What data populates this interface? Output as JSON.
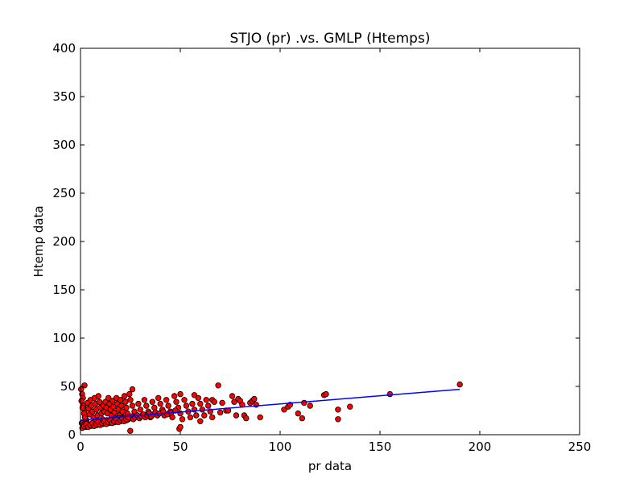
{
  "chart_data": {
    "type": "scatter",
    "title": "STJO (pr) .vs. GMLP (Htemps)",
    "xlabel": "pr data",
    "ylabel": "Htemp data",
    "xlim": [
      0,
      250
    ],
    "ylim": [
      0,
      400
    ],
    "xticks": [
      0,
      50,
      100,
      150,
      200,
      250
    ],
    "yticks": [
      0,
      50,
      100,
      150,
      200,
      250,
      300,
      350,
      400
    ],
    "grid": false,
    "legend": "none",
    "colors": {
      "points": "#ff0000",
      "point_edge": "#000000",
      "fit_line": "#0000ff"
    },
    "series": [
      {
        "kind": "points",
        "x": [
          0.3,
          0.8,
          1.2,
          1.5,
          2.0,
          2.5,
          3.0,
          0.5,
          1.0,
          1.8,
          2.2,
          3.5,
          4.0,
          4.5,
          5.0,
          5.5,
          6.0,
          6.5,
          7.0,
          7.5,
          8.0,
          8.5,
          9.0,
          9.5,
          10.0,
          10.5,
          11.0,
          11.5,
          12.0,
          12.5,
          13.0,
          13.5,
          14.0,
          14.5,
          15.0,
          15.5,
          16.0,
          16.5,
          17.0,
          17.5,
          18.0,
          18.5,
          19.0,
          19.5,
          20.0,
          20.5,
          21.0,
          21.5,
          22.0,
          22.5,
          23.0,
          23.5,
          24.0,
          24.5,
          25.0,
          26.0,
          27.0,
          28.0,
          29.0,
          30.0,
          31.0,
          32.0,
          33.0,
          34.0,
          35.0,
          36.0,
          37.0,
          38.0,
          39.0,
          40.0,
          41.0,
          42.0,
          43.0,
          44.0,
          45.0,
          46.0,
          47.0,
          48.0,
          49.0,
          50.0,
          51.0,
          52.0,
          53.0,
          54.0,
          55.0,
          56.0,
          57.0,
          58.0,
          59.0,
          60.0,
          61.0,
          62.0,
          63.0,
          64.0,
          65.0,
          66.0,
          0.6,
          1.4,
          2.8,
          3.2,
          4.2,
          5.2,
          6.2,
          7.2,
          8.2,
          9.2,
          10.2,
          11.2,
          12.2,
          13.2,
          14.2,
          15.2,
          16.2,
          17.2,
          18.2,
          19.2,
          20.2,
          21.2,
          22.2,
          23.2,
          24.2,
          25.5,
          26.5,
          27.5,
          28.5,
          29.5,
          30.5,
          31.5,
          32.5,
          33.5,
          34.5,
          35.5,
          36.5,
          37.5,
          38.5,
          39.5,
          41.5,
          43.5,
          45.5,
          47.5,
          49.5,
          0.9,
          1.9,
          2.9,
          3.9,
          4.9,
          5.9,
          6.9,
          7.9,
          8.9,
          9.9,
          10.9,
          11.9,
          12.9,
          13.9,
          14.9,
          15.9,
          16.9,
          17.9,
          18.9,
          19.9,
          20.9,
          21.9,
          22.9,
          23.9,
          24.9,
          2.0,
          26.0,
          50.0,
          50.0,
          57.0,
          60.0,
          66.0,
          67.0,
          69.0,
          70.0,
          71.0,
          73.0,
          74.0,
          76.0,
          77.0,
          78.0,
          79.0,
          80.0,
          81.0,
          82.0,
          83.0,
          85.0,
          86.0,
          87.0,
          88.0,
          90.0,
          102.0,
          104.0,
          105.0,
          109.0,
          111.0,
          112.0,
          115.0,
          122.0,
          123.0,
          129.0,
          129.0,
          135.0,
          155.0,
          190.0
        ],
        "y": [
          47,
          42,
          38,
          30,
          25,
          20,
          15,
          35,
          28,
          22,
          18,
          33,
          27,
          21,
          36,
          30,
          24,
          18,
          38,
          32,
          26,
          20,
          40,
          34,
          28,
          22,
          16,
          30,
          24,
          34,
          28,
          22,
          38,
          32,
          26,
          20,
          35,
          29,
          23,
          17,
          38,
          32,
          26,
          20,
          36,
          30,
          24,
          18,
          40,
          34,
          28,
          22,
          16,
          42,
          36,
          30,
          24,
          18,
          32,
          26,
          20,
          36,
          30,
          24,
          18,
          34,
          28,
          22,
          38,
          32,
          26,
          20,
          36,
          30,
          24,
          18,
          40,
          34,
          28,
          22,
          16,
          36,
          30,
          24,
          18,
          32,
          26,
          20,
          38,
          32,
          26,
          20,
          36,
          30,
          24,
          18,
          12,
          10,
          8,
          12,
          10,
          9,
          11,
          13,
          10,
          12,
          14,
          11,
          13,
          15,
          12,
          14,
          16,
          13,
          15,
          17,
          14,
          16,
          18,
          15,
          17,
          19,
          16,
          18,
          20,
          17,
          19,
          21,
          18,
          20,
          22,
          19,
          21,
          23,
          20,
          22,
          24,
          21,
          23,
          25,
          6,
          7,
          9,
          11,
          8,
          10,
          12,
          9,
          11,
          13,
          10,
          12,
          14,
          11,
          13,
          15,
          12,
          14,
          16,
          13,
          15,
          17,
          14,
          16,
          18,
          4,
          51,
          47,
          8,
          42,
          41,
          14,
          36,
          34,
          51,
          23,
          33,
          25,
          25,
          40,
          34,
          20,
          37,
          35,
          31,
          20,
          17,
          33,
          35,
          37,
          31,
          18,
          26,
          29,
          31,
          22,
          17,
          33,
          30,
          41,
          42,
          26,
          16,
          29,
          42,
          52
        ]
      },
      {
        "kind": "fit_line",
        "x": [
          0,
          190
        ],
        "y": [
          15,
          47
        ]
      }
    ]
  }
}
